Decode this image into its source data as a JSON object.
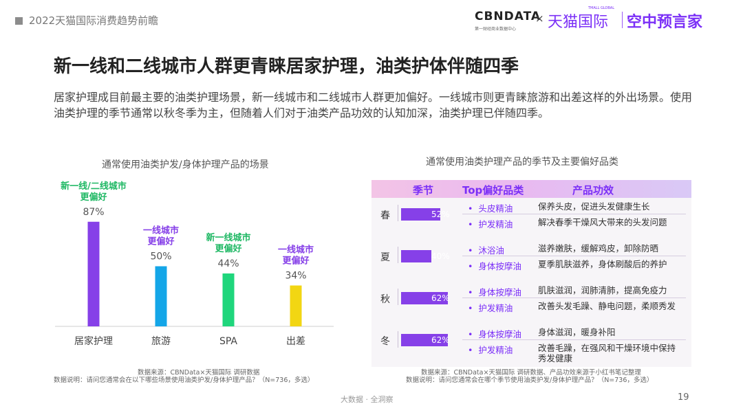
{
  "header": {
    "report_title": "2022天猫国际消费趋势前瞻",
    "logo_cbndata": "CBNDATA",
    "logo_cbndata_sub": "第一财经商业数据中心",
    "logo_x": "×",
    "logo_tmall": "天猫国际",
    "logo_tmall_sub": "TMALL GLOBAL",
    "logo_kongzhong": "空中预言家"
  },
  "slide": {
    "title": "新一线和二线城市人群更青睐居家护理，油类护体伴随四季",
    "description": "居家护理成目前最主要的油类护理场景，新一线城市和二线城市人群更加偏好。一线城市则更青睐旅游和出差这样的外出场景。使用油类护理的季节通常以秋冬季为主，但随着人们对于油类产品功效的认知加深，油类护理已伴随四季。"
  },
  "left_chart": {
    "title": "通常使用油类护发/身体护理产品的场景",
    "source": "数据来源：CBNData×天猫国际 调研数据",
    "note": "数据说明：请问您通常会在以下哪些场景使用油类护发/身体护理产品？（N=736，多选）"
  },
  "chart_data": {
    "type": "bar",
    "categories": [
      "居家护理",
      "旅游",
      "SPA",
      "出差"
    ],
    "values": [
      87,
      50,
      44,
      34
    ],
    "value_labels": [
      "87%",
      "50%",
      "44%",
      "34%"
    ],
    "annotations": [
      [
        "新一线/二线城市",
        "更偏好"
      ],
      [
        "一线城市",
        "更偏好"
      ],
      [
        "新一线城市",
        "更偏好"
      ],
      [
        "一线城市",
        "更偏好"
      ]
    ],
    "colors": [
      "#8640e8",
      "#14a6e8",
      "#1fd67c",
      "#f2d613"
    ],
    "annotation_colors": [
      "#1fb864",
      "#8640e8",
      "#1fb864",
      "#8640e8"
    ],
    "title": "",
    "xlabel": "",
    "ylabel": "",
    "ylim": [
      0,
      100
    ],
    "grid": false
  },
  "right_panel": {
    "title": "通常使用油类护理产品的季节及主要偏好品类",
    "headers": {
      "season": "季节",
      "top_category": "Top偏好品类",
      "effect": "产品功效"
    },
    "seasons": [
      {
        "name": "春",
        "value": 52,
        "label": "52%",
        "items": [
          {
            "product": "头皮精油",
            "effect": "保养头皮，促进头发健康生长"
          },
          {
            "product": "护发精油",
            "effect": "解决春季干燥风大带来的头发问题"
          }
        ]
      },
      {
        "name": "夏",
        "value": 40,
        "label": "40%",
        "items": [
          {
            "product": "沐浴油",
            "effect": "滋养嫩肤，缓解鸡皮，卸除防晒"
          },
          {
            "product": "身体按摩油",
            "effect": "夏季肌肤滋养，身体刷酸后的养护"
          }
        ]
      },
      {
        "name": "秋",
        "value": 62,
        "label": "62%",
        "items": [
          {
            "product": "身体按摩油",
            "effect": "肌肤滋润，润肺清肺，提高免疫力"
          },
          {
            "product": "护发精油",
            "effect": "改善头发毛躁、静电问题，柔顺秀发"
          }
        ]
      },
      {
        "name": "冬",
        "value": 62,
        "label": "62%",
        "items": [
          {
            "product": "身体按摩油",
            "effect": "身体滋润，暖身补阳"
          },
          {
            "product": "护发精油",
            "effect": "改善毛躁，在强风和干燥环境中保持秀发健康"
          }
        ]
      }
    ],
    "source": "数据来源：CBNData×天猫国际 调研数据、产品功效来源于小红书笔记整理",
    "note": "数据说明：请问您通常会在哪个季节使用油类护发/身体护理产品？（N=736，多选）"
  },
  "footer": {
    "center": "大数据 · 全洞察",
    "page_number": "19"
  }
}
